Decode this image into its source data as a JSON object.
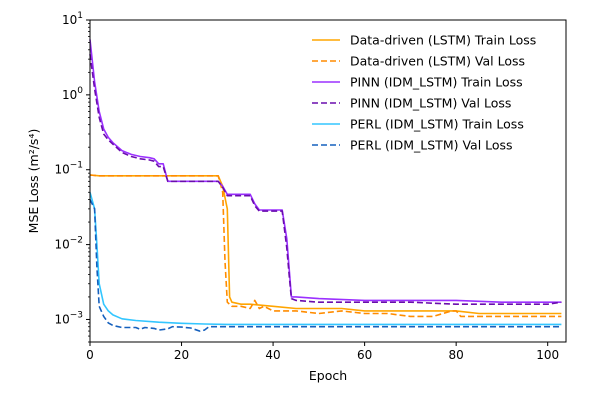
{
  "chart_data": {
    "type": "line",
    "title": "",
    "xlabel": "Epoch",
    "ylabel": "MSE Loss (m²/s⁴)",
    "y_scale": "log",
    "xlim": [
      0,
      104
    ],
    "ylim": [
      0.0005,
      10
    ],
    "x_ticks": [
      0,
      20,
      40,
      60,
      80,
      100
    ],
    "x_tick_labels": [
      "0",
      "20",
      "40",
      "60",
      "80",
      "100"
    ],
    "y_ticks": [
      0.001,
      0.01,
      0.1,
      1,
      10
    ],
    "y_tick_labels": [
      {
        "base": "10",
        "exp": "−3"
      },
      {
        "base": "10",
        "exp": "−2"
      },
      {
        "base": "10",
        "exp": "−1"
      },
      {
        "base": "10",
        "exp": "0"
      },
      {
        "base": "10",
        "exp": "1"
      }
    ],
    "grid": false,
    "legend_position": "top-right",
    "series": [
      {
        "name": "Data-driven (LSTM) Train Loss",
        "color": "#ffa500",
        "dash": "solid",
        "x": [
          0,
          2,
          5,
          10,
          15,
          20,
          25,
          28,
          29,
          30,
          30.5,
          31,
          33,
          35,
          40,
          45,
          50,
          55,
          60,
          65,
          70,
          75,
          80,
          85,
          90,
          95,
          100,
          103
        ],
        "y": [
          0.085,
          0.083,
          0.083,
          0.083,
          0.083,
          0.083,
          0.083,
          0.083,
          0.06,
          0.03,
          0.002,
          0.0017,
          0.0016,
          0.0016,
          0.0015,
          0.0014,
          0.0014,
          0.0014,
          0.0013,
          0.0013,
          0.0013,
          0.0013,
          0.0013,
          0.0012,
          0.0012,
          0.0012,
          0.0012,
          0.0012
        ]
      },
      {
        "name": "Data-driven (LSTM) Val Loss",
        "color": "#ff8c00",
        "dash": "dashed",
        "x": [
          0,
          2,
          5,
          10,
          15,
          20,
          25,
          28,
          29,
          29.5,
          30,
          31,
          33,
          35,
          36,
          37,
          38,
          40,
          45,
          50,
          55,
          60,
          65,
          70,
          75,
          79,
          80,
          81,
          85,
          90,
          95,
          100,
          103
        ],
        "y": [
          0.085,
          0.083,
          0.083,
          0.083,
          0.083,
          0.083,
          0.083,
          0.083,
          0.05,
          0.006,
          0.0017,
          0.0015,
          0.0015,
          0.0014,
          0.0018,
          0.0014,
          0.0015,
          0.0013,
          0.0013,
          0.0012,
          0.0013,
          0.0012,
          0.0012,
          0.0011,
          0.0011,
          0.0013,
          0.0013,
          0.0011,
          0.0011,
          0.0011,
          0.0011,
          0.0011,
          0.0011
        ]
      },
      {
        "name": "PINN (IDM_LSTM) Train Loss",
        "color": "#9b30ff",
        "dash": "solid",
        "x": [
          0,
          1,
          2,
          3,
          4,
          5,
          7,
          9,
          11,
          13,
          14,
          15,
          16,
          17,
          20,
          25,
          28,
          29,
          30,
          33,
          35,
          36,
          37,
          40,
          42,
          43,
          44,
          45,
          50,
          60,
          70,
          80,
          90,
          100,
          103
        ],
        "y": [
          5.5,
          1.5,
          0.6,
          0.35,
          0.27,
          0.23,
          0.18,
          0.16,
          0.15,
          0.145,
          0.14,
          0.12,
          0.12,
          0.07,
          0.07,
          0.07,
          0.07,
          0.06,
          0.047,
          0.047,
          0.047,
          0.035,
          0.029,
          0.029,
          0.029,
          0.012,
          0.002,
          0.002,
          0.0019,
          0.0018,
          0.0018,
          0.0018,
          0.0017,
          0.0017,
          0.0017
        ]
      },
      {
        "name": "PINN (IDM_LSTM) Val Loss",
        "color": "#6a0dad",
        "dash": "dashed",
        "x": [
          0,
          1,
          2,
          3,
          4,
          5,
          7,
          9,
          11,
          13,
          14,
          15,
          16,
          17,
          20,
          25,
          28,
          29,
          30,
          33,
          35,
          36,
          37,
          40,
          42,
          43,
          43.5,
          44,
          45,
          50,
          60,
          70,
          80,
          90,
          100,
          103
        ],
        "y": [
          3.5,
          1.2,
          0.5,
          0.3,
          0.25,
          0.22,
          0.17,
          0.15,
          0.14,
          0.135,
          0.13,
          0.11,
          0.11,
          0.07,
          0.07,
          0.07,
          0.07,
          0.058,
          0.045,
          0.045,
          0.045,
          0.033,
          0.028,
          0.028,
          0.028,
          0.009,
          0.004,
          0.0019,
          0.0018,
          0.0017,
          0.0017,
          0.0017,
          0.0016,
          0.0016,
          0.0016,
          0.0017
        ]
      },
      {
        "name": "PERL (IDM_LSTM) Train Loss",
        "color": "#33c6ff",
        "dash": "solid",
        "x": [
          0,
          1,
          1.5,
          2,
          3,
          4,
          5,
          7,
          10,
          15,
          20,
          25,
          30,
          40,
          50,
          60,
          70,
          80,
          90,
          100,
          103
        ],
        "y": [
          0.05,
          0.03,
          0.01,
          0.003,
          0.0016,
          0.0013,
          0.00115,
          0.00102,
          0.00097,
          0.00092,
          0.00089,
          0.00087,
          0.00086,
          0.00086,
          0.00086,
          0.00086,
          0.00086,
          0.00086,
          0.00086,
          0.00086,
          0.00086
        ]
      },
      {
        "name": "PERL (IDM_LSTM) Val Loss",
        "color": "#1560bd",
        "dash": "dashed",
        "x": [
          0,
          1,
          1.5,
          2,
          3,
          4,
          5,
          7,
          10,
          11,
          12,
          14,
          15,
          17,
          18,
          20,
          22,
          24,
          25,
          26,
          30,
          40,
          50,
          60,
          70,
          80,
          90,
          100,
          103
        ],
        "y": [
          0.04,
          0.03,
          0.005,
          0.0015,
          0.0011,
          0.0009,
          0.00083,
          0.00078,
          0.00078,
          0.00074,
          0.00078,
          0.00076,
          0.00072,
          0.00075,
          0.0008,
          0.00079,
          0.00077,
          0.0007,
          0.00072,
          0.0008,
          0.0008,
          0.0008,
          0.0008,
          0.0008,
          0.0008,
          0.0008,
          0.0008,
          0.0008,
          0.0008
        ]
      }
    ]
  }
}
